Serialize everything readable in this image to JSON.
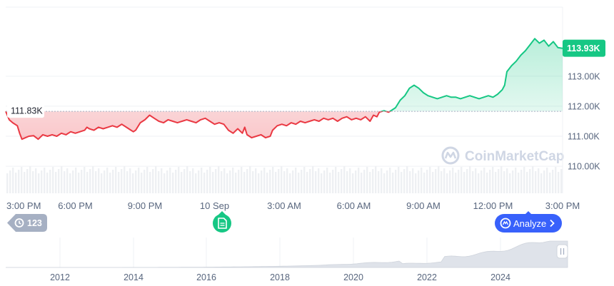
{
  "chart_data": {
    "type": "area",
    "subtype": "price-line-with-baseline",
    "reference_value": 111.83,
    "reference_label": "111.83K",
    "last_value": 113.93,
    "last_label": "113.93K",
    "colors": {
      "below": "#ea3943",
      "above": "#16c784",
      "axis_text": "#58667e",
      "brand": "#3861fb"
    },
    "y_axis": {
      "ticks": [
        {
          "value": 110.0,
          "label": "110.00K"
        },
        {
          "value": 111.0,
          "label": "111.00K"
        },
        {
          "value": 112.0,
          "label": "112.00K"
        },
        {
          "value": 113.0,
          "label": "113.00K"
        }
      ],
      "ylim": [
        109.1,
        115.3
      ],
      "grid": true
    },
    "x_axis": {
      "xlim": [
        0,
        24
      ],
      "ticks": [
        {
          "value": 0,
          "label": "3:00 PM"
        },
        {
          "value": 3,
          "label": "6:00 PM"
        },
        {
          "value": 6,
          "label": "9:00 PM"
        },
        {
          "value": 9,
          "label": "10 Sep"
        },
        {
          "value": 12,
          "label": "3:00 AM"
        },
        {
          "value": 15,
          "label": "6:00 AM"
        },
        {
          "value": 18,
          "label": "9:00 AM"
        },
        {
          "value": 21,
          "label": "12:00 PM"
        },
        {
          "value": 24,
          "label": "3:00 PM"
        }
      ]
    },
    "series": [
      {
        "points": [
          [
            0.0,
            111.83
          ],
          [
            0.15,
            111.55
          ],
          [
            0.3,
            111.45
          ],
          [
            0.5,
            111.35
          ],
          [
            0.6,
            111.1
          ],
          [
            0.7,
            110.9
          ],
          [
            0.85,
            110.95
          ],
          [
            1.0,
            111.0
          ],
          [
            1.2,
            111.02
          ],
          [
            1.4,
            110.9
          ],
          [
            1.6,
            111.05
          ],
          [
            1.8,
            111.0
          ],
          [
            2.0,
            111.05
          ],
          [
            2.2,
            111.0
          ],
          [
            2.4,
            111.1
          ],
          [
            2.6,
            111.05
          ],
          [
            2.8,
            111.15
          ],
          [
            3.0,
            111.1
          ],
          [
            3.2,
            111.15
          ],
          [
            3.4,
            111.2
          ],
          [
            3.5,
            111.3
          ],
          [
            3.6,
            111.25
          ],
          [
            3.8,
            111.2
          ],
          [
            4.0,
            111.3
          ],
          [
            4.2,
            111.25
          ],
          [
            4.4,
            111.3
          ],
          [
            4.6,
            111.35
          ],
          [
            4.8,
            111.3
          ],
          [
            5.0,
            111.4
          ],
          [
            5.2,
            111.3
          ],
          [
            5.4,
            111.2
          ],
          [
            5.5,
            111.15
          ],
          [
            5.6,
            111.2
          ],
          [
            5.8,
            111.45
          ],
          [
            6.0,
            111.55
          ],
          [
            6.2,
            111.7
          ],
          [
            6.4,
            111.6
          ],
          [
            6.6,
            111.5
          ],
          [
            6.8,
            111.45
          ],
          [
            7.0,
            111.55
          ],
          [
            7.2,
            111.5
          ],
          [
            7.4,
            111.45
          ],
          [
            7.6,
            111.5
          ],
          [
            7.8,
            111.55
          ],
          [
            8.0,
            111.5
          ],
          [
            8.2,
            111.45
          ],
          [
            8.4,
            111.55
          ],
          [
            8.6,
            111.6
          ],
          [
            8.8,
            111.5
          ],
          [
            9.0,
            111.4
          ],
          [
            9.2,
            111.45
          ],
          [
            9.4,
            111.4
          ],
          [
            9.6,
            111.2
          ],
          [
            9.8,
            111.1
          ],
          [
            10.0,
            111.25
          ],
          [
            10.2,
            111.1
          ],
          [
            10.3,
            111.3
          ],
          [
            10.4,
            111.05
          ],
          [
            10.6,
            110.95
          ],
          [
            10.8,
            111.0
          ],
          [
            11.0,
            111.05
          ],
          [
            11.2,
            110.95
          ],
          [
            11.4,
            111.0
          ],
          [
            11.5,
            111.2
          ],
          [
            11.7,
            111.35
          ],
          [
            11.9,
            111.4
          ],
          [
            12.1,
            111.35
          ],
          [
            12.3,
            111.45
          ],
          [
            12.5,
            111.4
          ],
          [
            12.7,
            111.5
          ],
          [
            12.9,
            111.45
          ],
          [
            13.1,
            111.5
          ],
          [
            13.3,
            111.55
          ],
          [
            13.5,
            111.5
          ],
          [
            13.7,
            111.6
          ],
          [
            13.9,
            111.55
          ],
          [
            14.1,
            111.6
          ],
          [
            14.3,
            111.5
          ],
          [
            14.5,
            111.6
          ],
          [
            14.7,
            111.65
          ],
          [
            14.9,
            111.55
          ],
          [
            15.1,
            111.6
          ],
          [
            15.3,
            111.55
          ],
          [
            15.5,
            111.65
          ],
          [
            15.7,
            111.5
          ],
          [
            15.85,
            111.7
          ],
          [
            16.0,
            111.65
          ],
          [
            16.1,
            111.8
          ],
          [
            16.3,
            111.85
          ],
          [
            16.5,
            111.8
          ],
          [
            16.7,
            111.9
          ],
          [
            16.8,
            111.95
          ],
          [
            17.0,
            112.2
          ],
          [
            17.2,
            112.35
          ],
          [
            17.4,
            112.6
          ],
          [
            17.6,
            112.7
          ],
          [
            17.8,
            112.6
          ],
          [
            18.0,
            112.45
          ],
          [
            18.2,
            112.35
          ],
          [
            18.4,
            112.3
          ],
          [
            18.6,
            112.25
          ],
          [
            18.8,
            112.3
          ],
          [
            19.0,
            112.35
          ],
          [
            19.2,
            112.3
          ],
          [
            19.4,
            112.3
          ],
          [
            19.6,
            112.25
          ],
          [
            19.8,
            112.3
          ],
          [
            20.0,
            112.35
          ],
          [
            20.2,
            112.3
          ],
          [
            20.4,
            112.25
          ],
          [
            20.6,
            112.3
          ],
          [
            20.8,
            112.35
          ],
          [
            21.0,
            112.3
          ],
          [
            21.2,
            112.4
          ],
          [
            21.4,
            112.55
          ],
          [
            21.5,
            112.7
          ],
          [
            21.6,
            113.15
          ],
          [
            21.8,
            113.35
          ],
          [
            22.0,
            113.5
          ],
          [
            22.2,
            113.7
          ],
          [
            22.4,
            113.85
          ],
          [
            22.6,
            114.05
          ],
          [
            22.8,
            114.25
          ],
          [
            23.0,
            114.1
          ],
          [
            23.2,
            114.2
          ],
          [
            23.4,
            114.0
          ],
          [
            23.6,
            114.15
          ],
          [
            23.8,
            113.95
          ],
          [
            24.0,
            113.93
          ]
        ]
      }
    ]
  },
  "history_chart": {
    "x_ticks": [
      "2012",
      "2014",
      "2016",
      "2018",
      "2020",
      "2022",
      "2024"
    ]
  },
  "ui": {
    "watermark": "CoinMarketCap",
    "history_badge_count": "123",
    "analyze_button": "Analyze"
  }
}
